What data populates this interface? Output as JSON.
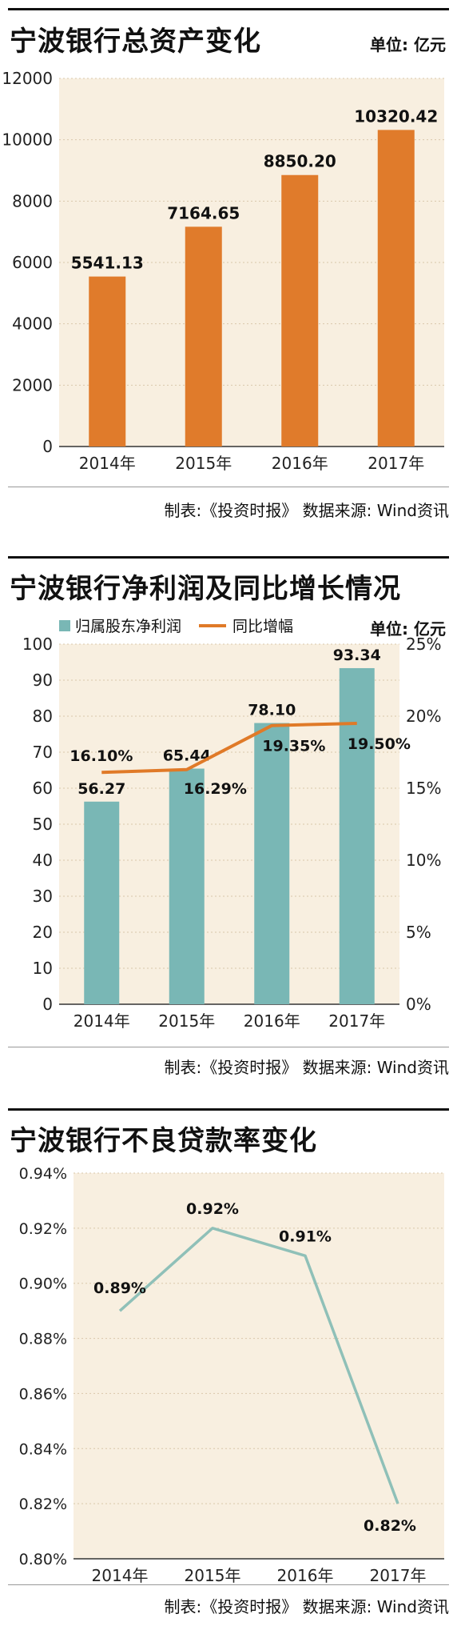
{
  "chart_data": [
    {
      "type": "bar",
      "title": "宁波银行总资产变化",
      "unit": "单位: 亿元",
      "categories": [
        "2014年",
        "2015年",
        "2016年",
        "2017年"
      ],
      "values": [
        5541.13,
        7164.65,
        8850.2,
        10320.42
      ],
      "value_labels": [
        "5541.13",
        "7164.65",
        "8850.20",
        "10320.42"
      ],
      "ylim": [
        0,
        12000
      ],
      "yticks": [
        "0",
        "2000",
        "4000",
        "6000",
        "8000",
        "10000",
        "12000"
      ],
      "grid": true,
      "colors": {
        "bar": "#e07b2b",
        "plot_bg": "#f8efe0",
        "grid": "#d9c7aa"
      },
      "footer": "制表:《投资时报》  数据来源: Wind资讯"
    },
    {
      "type": "bar",
      "title": "宁波银行净利润及同比增长情况",
      "unit": "单位: 亿元",
      "legend": [
        "归属股东净利润",
        "同比增幅"
      ],
      "legend_position": "top-left",
      "categories": [
        "2014年",
        "2015年",
        "2016年",
        "2017年"
      ],
      "series": [
        {
          "name": "归属股东净利润",
          "type": "bar",
          "values": [
            56.27,
            65.44,
            78.1,
            93.34
          ],
          "value_labels": [
            "56.27",
            "65.44",
            "78.10",
            "93.34"
          ]
        },
        {
          "name": "同比增幅",
          "type": "line",
          "axis": "right",
          "values": [
            16.1,
            16.29,
            19.35,
            19.5
          ],
          "value_labels": [
            "16.10%",
            "16.29%",
            "19.35%",
            "19.50%"
          ]
        }
      ],
      "ylim": [
        0,
        100
      ],
      "yticks": [
        "0",
        "10",
        "20",
        "30",
        "40",
        "50",
        "60",
        "70",
        "80",
        "90",
        "100"
      ],
      "y2lim": [
        0,
        25
      ],
      "y2ticks": [
        "0%",
        "5%",
        "10%",
        "15%",
        "20%",
        "25%"
      ],
      "grid": true,
      "colors": {
        "bar": "#79b7b5",
        "line": "#e07a28",
        "plot_bg": "#f8efe0",
        "grid": "#d9c7aa"
      },
      "footer": "制表:《投资时报》  数据来源: Wind资讯"
    },
    {
      "type": "line",
      "title": "宁波银行不良贷款率变化",
      "categories": [
        "2014年",
        "2015年",
        "2016年",
        "2017年"
      ],
      "values": [
        0.89,
        0.92,
        0.91,
        0.82
      ],
      "value_labels": [
        "0.89%",
        "0.92%",
        "0.91%",
        "0.82%"
      ],
      "ylim": [
        0.8,
        0.94
      ],
      "yticks": [
        "0.80%",
        "0.82%",
        "0.84%",
        "0.86%",
        "0.88%",
        "0.90%",
        "0.92%",
        "0.94%"
      ],
      "grid": true,
      "colors": {
        "line": "#8fc0b8",
        "plot_bg": "#f8efe0",
        "grid": "#d9c7aa"
      },
      "footer": "制表:《投资时报》  数据来源: Wind资讯"
    }
  ]
}
